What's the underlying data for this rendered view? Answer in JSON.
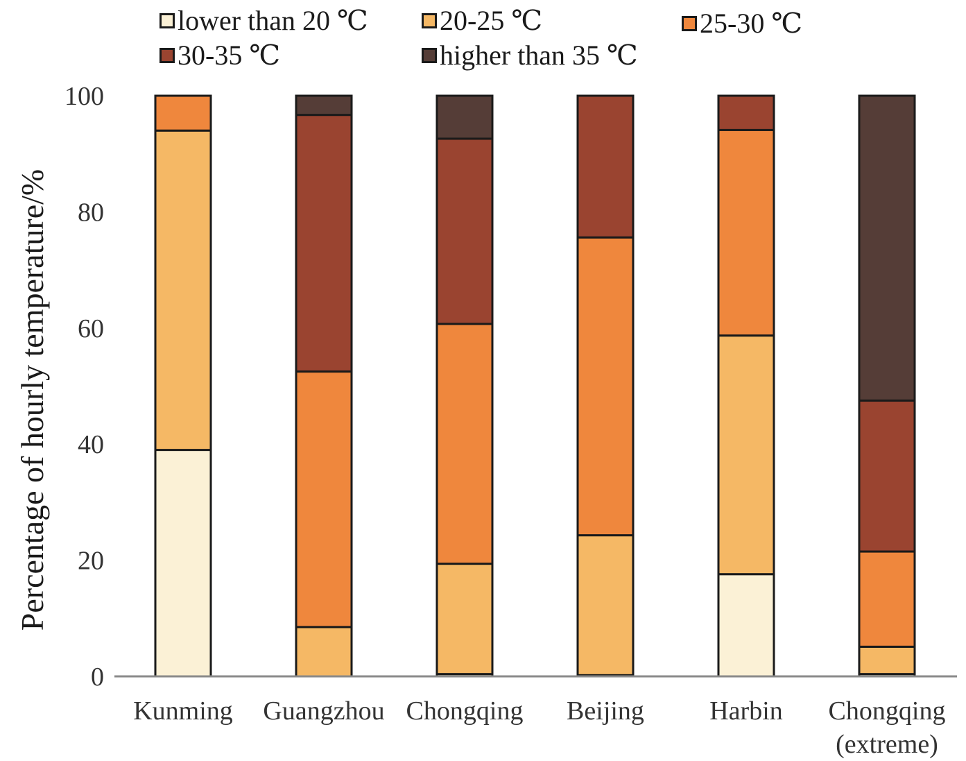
{
  "chart_data": {
    "type": "bar",
    "stacked": true,
    "title": "",
    "xlabel": "",
    "ylabel": "Percentage of hourly temperature/%",
    "ylim": [
      0,
      100
    ],
    "yticks": [
      0,
      20,
      40,
      60,
      80,
      100
    ],
    "grid": false,
    "legend_position": "top",
    "categories": [
      "Kunming",
      "Guangzhou",
      "Chongqing",
      "Beijing",
      "Harbin",
      "Chongqing\n(extreme)"
    ],
    "category_lines": [
      [
        "Kunming"
      ],
      [
        "Guangzhou"
      ],
      [
        "Chongqing"
      ],
      [
        "Beijing"
      ],
      [
        "Harbin"
      ],
      [
        "Chongqing",
        "(extreme)"
      ]
    ],
    "series": [
      {
        "name": "lower than 20 ℃",
        "color": "#fbf1d6",
        "values": [
          39.0,
          0.0,
          0.4,
          0.2,
          17.6,
          0.4
        ]
      },
      {
        "name": "20-25 ℃",
        "color": "#f5b865",
        "values": [
          55.0,
          8.5,
          19.0,
          24.1,
          41.1,
          4.7
        ]
      },
      {
        "name": "25-30 ℃",
        "color": "#ef873d",
        "values": [
          6.0,
          44.0,
          41.3,
          51.3,
          35.4,
          16.4
        ]
      },
      {
        "name": "30-35 ℃",
        "color": "#9a4430",
        "values": [
          0.0,
          44.2,
          31.9,
          24.4,
          5.9,
          26.0
        ]
      },
      {
        "name": "higher than 35 ℃",
        "color": "#553d37",
        "values": [
          0.0,
          3.3,
          7.4,
          0.0,
          0.0,
          52.5
        ]
      }
    ]
  }
}
